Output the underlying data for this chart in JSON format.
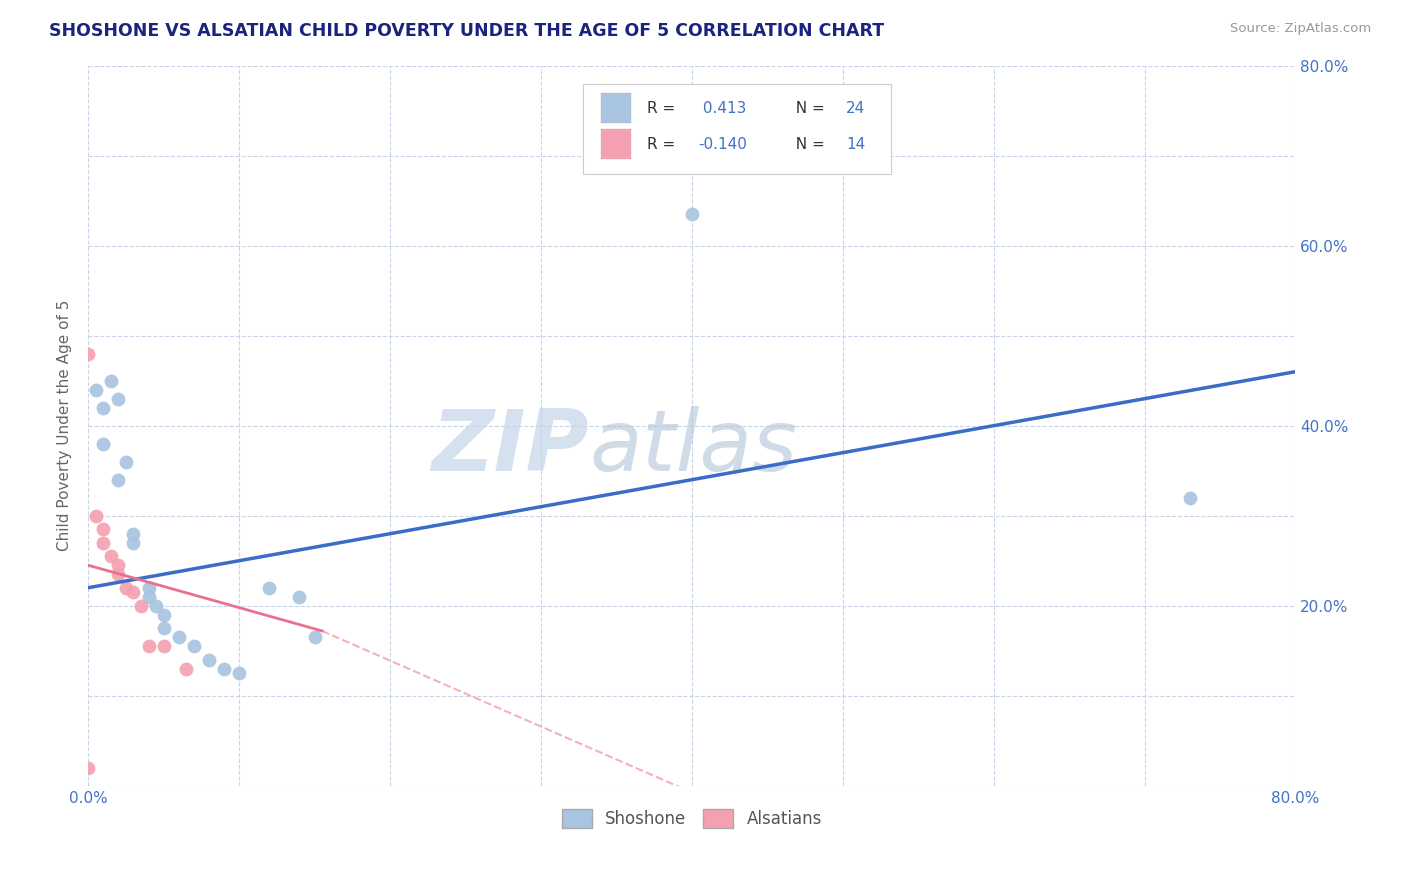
{
  "title": "SHOSHONE VS ALSATIAN CHILD POVERTY UNDER THE AGE OF 5 CORRELATION CHART",
  "source_text": "Source: ZipAtlas.com",
  "ylabel": "Child Poverty Under the Age of 5",
  "xlim": [
    0.0,
    0.8
  ],
  "ylim": [
    0.0,
    0.8
  ],
  "xtick_vals": [
    0.0,
    0.1,
    0.2,
    0.3,
    0.4,
    0.5,
    0.6,
    0.7,
    0.8
  ],
  "ytick_vals": [
    0.0,
    0.1,
    0.2,
    0.3,
    0.4,
    0.5,
    0.6,
    0.7,
    0.8
  ],
  "xtick_labels": [
    "0.0%",
    "",
    "",
    "",
    "",
    "",
    "",
    "",
    "80.0%"
  ],
  "ytick_labels_right": [
    "",
    "",
    "20.0%",
    "",
    "40.0%",
    "",
    "60.0%",
    "",
    "80.0%"
  ],
  "watermark_zip": "ZIP",
  "watermark_atlas": "atlas",
  "legend_shoshone_label": "Shoshone",
  "legend_alsatian_label": "Alsatians",
  "R_shoshone": 0.413,
  "N_shoshone": 24,
  "R_alsatian": -0.14,
  "N_alsatian": 14,
  "shoshone_color": "#a8c4e0",
  "alsatian_color": "#f4a0b0",
  "shoshone_line_color": "#3b6cc7",
  "alsatian_line_color": "#e87090",
  "shoshone_scatter": [
    [
      0.005,
      0.44
    ],
    [
      0.01,
      0.42
    ],
    [
      0.01,
      0.38
    ],
    [
      0.015,
      0.45
    ],
    [
      0.02,
      0.43
    ],
    [
      0.02,
      0.34
    ],
    [
      0.025,
      0.36
    ],
    [
      0.03,
      0.28
    ],
    [
      0.03,
      0.27
    ],
    [
      0.04,
      0.22
    ],
    [
      0.04,
      0.21
    ],
    [
      0.045,
      0.2
    ],
    [
      0.05,
      0.19
    ],
    [
      0.05,
      0.175
    ],
    [
      0.06,
      0.165
    ],
    [
      0.07,
      0.155
    ],
    [
      0.08,
      0.14
    ],
    [
      0.09,
      0.13
    ],
    [
      0.1,
      0.125
    ],
    [
      0.12,
      0.22
    ],
    [
      0.14,
      0.21
    ],
    [
      0.15,
      0.165
    ],
    [
      0.4,
      0.635
    ],
    [
      0.73,
      0.32
    ]
  ],
  "alsatian_scatter": [
    [
      0.0,
      0.48
    ],
    [
      0.005,
      0.3
    ],
    [
      0.01,
      0.285
    ],
    [
      0.01,
      0.27
    ],
    [
      0.015,
      0.255
    ],
    [
      0.02,
      0.245
    ],
    [
      0.02,
      0.235
    ],
    [
      0.025,
      0.22
    ],
    [
      0.03,
      0.215
    ],
    [
      0.035,
      0.2
    ],
    [
      0.04,
      0.155
    ],
    [
      0.05,
      0.155
    ],
    [
      0.065,
      0.13
    ],
    [
      0.0,
      0.02
    ]
  ],
  "background_color": "#ffffff",
  "grid_color": "#c8d4e8",
  "title_color": "#1a237e",
  "axis_label_color": "#666666",
  "tick_label_color": "#4472c4",
  "legend_border_color": "#cccccc"
}
